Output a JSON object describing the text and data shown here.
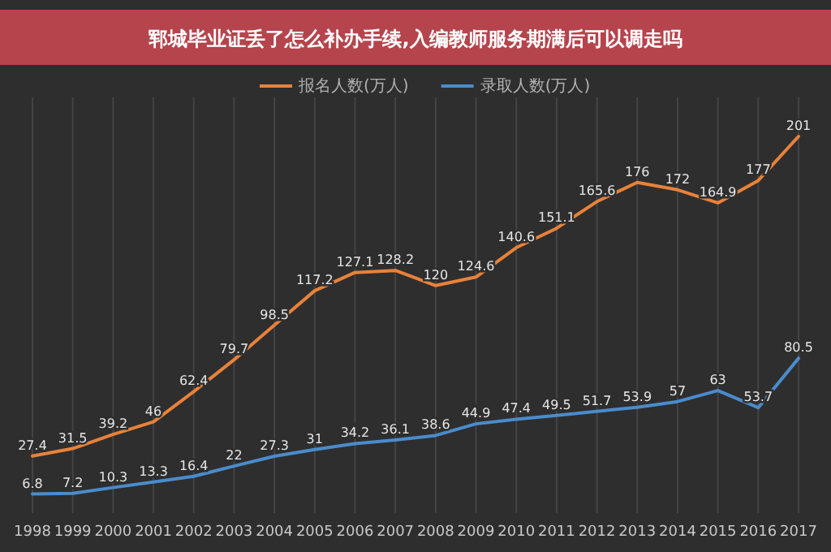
{
  "chart_data": {
    "type": "line",
    "title": "郓城毕业证丢了怎么补办手续,入编教师服务期满后可以调走吗",
    "categories": [
      "1998",
      "1999",
      "2000",
      "2001",
      "2002",
      "2003",
      "2004",
      "2005",
      "2006",
      "2007",
      "2008",
      "2009",
      "2010",
      "2011",
      "2012",
      "2013",
      "2014",
      "2015",
      "2016",
      "2017"
    ],
    "series": [
      {
        "name": "报名人数(万人)",
        "color": "#e8823a",
        "values": [
          27.4,
          31.5,
          39.2,
          46,
          62.4,
          79.7,
          98.5,
          117.2,
          127.1,
          128.2,
          120,
          124.6,
          140.6,
          151.1,
          165.6,
          176,
          172,
          164.9,
          177,
          201
        ]
      },
      {
        "name": "录取人数(万人)",
        "color": "#4a8ccc",
        "values": [
          6.8,
          7.2,
          10.3,
          13.3,
          16.4,
          22,
          27.3,
          31,
          34.2,
          36.1,
          38.6,
          44.9,
          47.4,
          49.5,
          51.7,
          53.9,
          57,
          63,
          53.7,
          80.5
        ]
      }
    ],
    "data_labels": true,
    "grid": "x",
    "legend": "top",
    "line_style": "solid"
  }
}
